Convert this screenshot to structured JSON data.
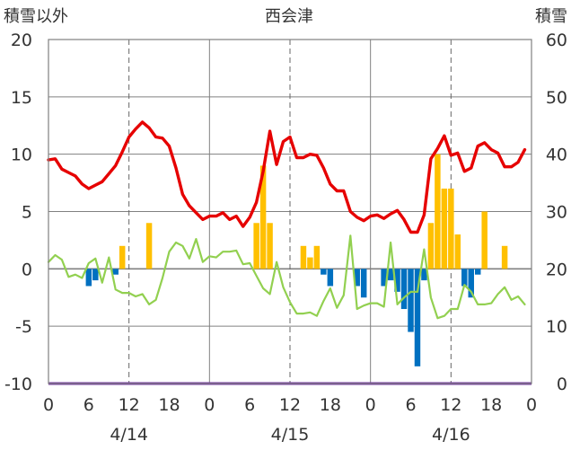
{
  "chart_data": {
    "type": "bar+line",
    "title": "西会津",
    "left_axis_title": "積雪以外",
    "right_axis_title": "積雪",
    "left_ylim": [
      -10,
      20
    ],
    "left_ticks": [
      20,
      15,
      10,
      5,
      0,
      -5,
      -10
    ],
    "right_ylim": [
      0,
      60
    ],
    "right_ticks": [
      60,
      50,
      40,
      30,
      20,
      10,
      0
    ],
    "x_range_hours": [
      0,
      72
    ],
    "x_tick_labels": [
      "0",
      "6",
      "12",
      "18",
      "0",
      "6",
      "12",
      "18",
      "0",
      "6",
      "12",
      "18",
      "0"
    ],
    "dates": [
      "4/14",
      "4/15",
      "4/16"
    ],
    "colors": {
      "red_line": "#e60000",
      "green_line": "#92d050",
      "bar_positive": "#ffc000",
      "bar_negative": "#0070c0",
      "snow_line": "#7030a0",
      "grid_solid": "#808080",
      "grid_dashed": "#666666"
    },
    "series": [
      {
        "role": "red_line",
        "x": [
          0,
          1,
          2,
          3,
          4,
          5,
          6,
          7,
          8,
          9,
          10,
          11,
          12,
          13,
          14,
          15,
          16,
          17,
          18,
          19,
          20,
          21,
          22,
          23,
          24,
          25,
          26,
          27,
          28,
          29,
          30,
          31,
          32,
          33,
          34,
          35,
          36,
          37,
          38,
          39,
          40,
          41,
          42,
          43,
          44,
          45,
          46,
          47,
          48,
          49,
          50,
          51,
          52,
          53,
          54,
          55,
          56,
          57,
          58,
          59,
          60,
          61,
          62,
          63,
          64,
          65,
          66,
          67,
          68,
          69,
          70,
          71
        ],
        "values": [
          9.5,
          9.6,
          8.7,
          8.4,
          8.1,
          7.4,
          7.0,
          7.3,
          7.6,
          8.3,
          9.0,
          10.2,
          11.5,
          12.2,
          12.8,
          12.3,
          11.5,
          11.4,
          10.7,
          8.8,
          6.5,
          5.5,
          4.9,
          4.3,
          4.6,
          4.6,
          4.9,
          4.3,
          4.6,
          3.7,
          4.5,
          5.8,
          8.5,
          12.0,
          9.1,
          11.1,
          11.5,
          9.7,
          9.7,
          10.0,
          9.9,
          8.8,
          7.4,
          6.8,
          6.8,
          5.0,
          4.5,
          4.2,
          4.6,
          4.7,
          4.4,
          4.8,
          5.1,
          4.3,
          3.2,
          3.2,
          4.7,
          9.6,
          10.5,
          11.6,
          9.9,
          10.1,
          8.5,
          8.8,
          10.7,
          11.0,
          10.4,
          10.1,
          8.9,
          8.9,
          9.3,
          10.4
        ]
      },
      {
        "role": "green_line",
        "x": [
          0,
          1,
          2,
          3,
          4,
          5,
          6,
          7,
          8,
          9,
          10,
          11,
          12,
          13,
          14,
          15,
          16,
          17,
          18,
          19,
          20,
          21,
          22,
          23,
          24,
          25,
          26,
          27,
          28,
          29,
          30,
          31,
          32,
          33,
          34,
          35,
          36,
          37,
          38,
          39,
          40,
          41,
          42,
          43,
          44,
          45,
          46,
          47,
          48,
          49,
          50,
          51,
          52,
          53,
          54,
          55,
          56,
          57,
          58,
          59,
          60,
          61,
          62,
          63,
          64,
          65,
          66,
          67,
          68,
          69,
          70,
          71
        ],
        "values": [
          0.6,
          1.2,
          0.8,
          -0.7,
          -0.5,
          -0.8,
          0.5,
          0.9,
          -1.2,
          1.0,
          -1.8,
          -2.1,
          -2.1,
          -2.4,
          -2.2,
          -3.1,
          -2.7,
          -0.8,
          1.5,
          2.3,
          2.0,
          0.9,
          2.6,
          0.6,
          1.1,
          1.0,
          1.5,
          1.5,
          1.6,
          0.4,
          0.5,
          -0.6,
          -1.7,
          -2.2,
          0.6,
          -1.6,
          -2.9,
          -3.9,
          -3.9,
          -3.8,
          -4.1,
          -2.8,
          -1.7,
          -3.4,
          -2.3,
          2.9,
          -3.5,
          -3.2,
          -3.0,
          -3.0,
          -3.3,
          2.3,
          -3.1,
          -2.5,
          -2.0,
          -2.0,
          1.7,
          -2.5,
          -4.3,
          -4.1,
          -3.5,
          -3.5,
          -1.4,
          -2.0,
          -3.1,
          -3.1,
          -3.0,
          -2.2,
          -1.6,
          -2.7,
          -2.4,
          -3.1
        ]
      },
      {
        "role": "bars",
        "x": [
          6,
          7,
          10,
          11,
          15,
          31,
          32,
          33,
          38,
          39,
          40,
          41,
          42,
          46,
          47,
          50,
          51,
          52,
          53,
          54,
          55,
          56,
          57,
          58,
          59,
          60,
          61,
          62,
          63,
          64,
          65,
          68
        ],
        "values": [
          -1.5,
          -1.0,
          -0.5,
          2.0,
          4.0,
          4.0,
          9.0,
          4.0,
          2.0,
          1.0,
          2.0,
          -0.5,
          -1.5,
          -1.5,
          -2.5,
          -1.5,
          -1.0,
          -2.0,
          -3.5,
          -5.5,
          -8.5,
          -1.0,
          4.0,
          10.0,
          7.0,
          7.0,
          3.0,
          -1.5,
          -2.5,
          -0.5,
          5.0,
          2.0
        ]
      },
      {
        "role": "snow_line",
        "x": [
          0,
          72
        ],
        "values_right_axis": [
          0,
          0
        ]
      }
    ]
  }
}
